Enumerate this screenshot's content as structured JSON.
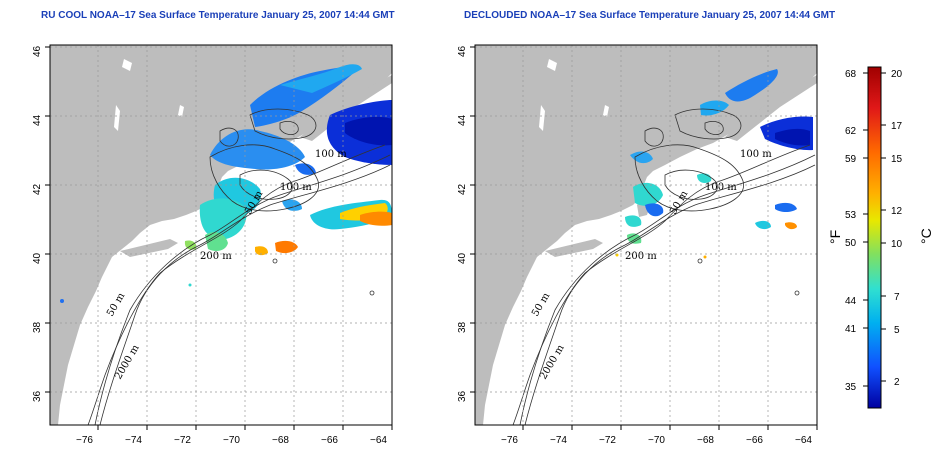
{
  "panels": [
    {
      "title": "RU COOL NOAA–17 Sea Surface Temperature January 25, 2007 14:44 GMT",
      "contour_labels": [
        "100 m",
        "100 m",
        "50 m",
        "200 m",
        "50 m",
        "2000 m"
      ]
    },
    {
      "title": "DECLOUDED NOAA–17 Sea Surface Temperature January 25, 2007 14:44 GMT",
      "contour_labels": [
        "100 m",
        "100 m",
        "50 m",
        "200 m",
        "50 m",
        "2000 m"
      ]
    }
  ],
  "axes": {
    "x_ticks": [
      "−76",
      "−74",
      "−72",
      "−70",
      "−68",
      "−66",
      "−64"
    ],
    "y_ticks": [
      "46",
      "44",
      "42",
      "40",
      "38",
      "36"
    ]
  },
  "colorbar": {
    "fahrenheit_unit": "°F",
    "celsius_unit": "°C",
    "fahrenheit_ticks": [
      "68",
      "62",
      "59",
      "53",
      "50",
      "44",
      "41",
      "35"
    ],
    "celsius_ticks": [
      "20",
      "17",
      "15",
      "12",
      "10",
      "7",
      "5",
      "2"
    ]
  },
  "colors": {
    "land": "#bdbdbd",
    "title": "#1a3fb8",
    "colorbar_stops": [
      "#a00000",
      "#e01818",
      "#ff6a00",
      "#ffb000",
      "#e8e800",
      "#80e060",
      "#30e0d0",
      "#00b0f0",
      "#1050ff",
      "#0000a0"
    ]
  }
}
